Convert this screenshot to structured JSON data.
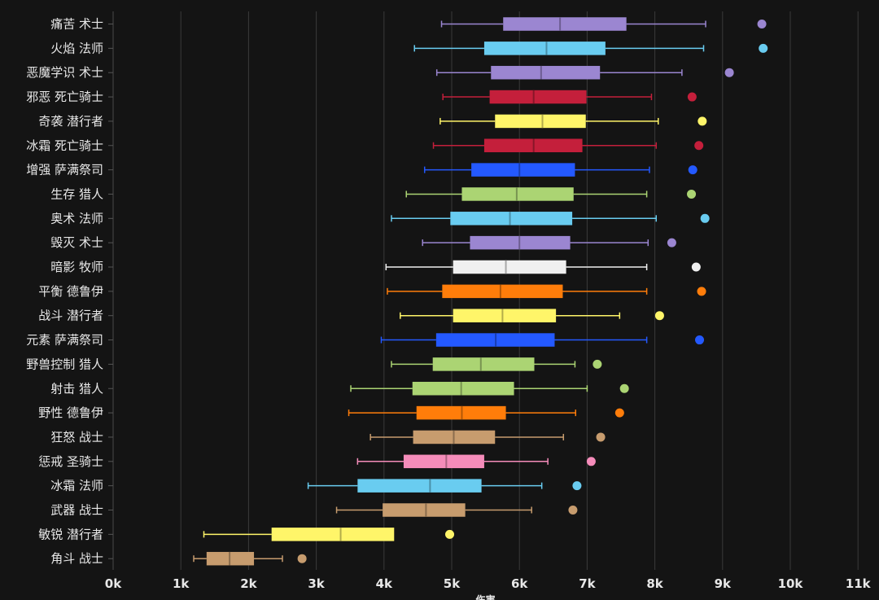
{
  "chart_data": {
    "type": "boxplot",
    "orientation": "horizontal",
    "title": "",
    "xlabel": "伤害",
    "ylabel": "",
    "xlim": [
      0,
      11000
    ],
    "xticks": [
      0,
      1000,
      2000,
      3000,
      4000,
      5000,
      6000,
      7000,
      8000,
      9000,
      10000,
      11000
    ],
    "xtick_labels": [
      "0k",
      "1k",
      "2k",
      "3k",
      "4k",
      "5k",
      "6k",
      "7k",
      "8k",
      "9k",
      "10k",
      "11k"
    ],
    "grid": "vertical",
    "series": [
      {
        "name": "痛苦 术士",
        "color": "#9b86d1",
        "whisker_low": 4850,
        "q1": 5760,
        "median": 6600,
        "q3": 7580,
        "whisker_high": 8750,
        "outlier": 9580
      },
      {
        "name": "火焰 法师",
        "color": "#69ccf0",
        "whisker_low": 4450,
        "q1": 5480,
        "median": 6400,
        "q3": 7270,
        "whisker_high": 8720,
        "outlier": 9600
      },
      {
        "name": "恶魔学识 术士",
        "color": "#9b86d1",
        "whisker_low": 4780,
        "q1": 5580,
        "median": 6320,
        "q3": 7190,
        "whisker_high": 8400,
        "outlier": 9100
      },
      {
        "name": "邪恶 死亡骑士",
        "color": "#c41f3b",
        "whisker_low": 4870,
        "q1": 5560,
        "median": 6210,
        "q3": 6990,
        "whisker_high": 7950,
        "outlier": 8550
      },
      {
        "name": "奇袭 潜行者",
        "color": "#fff569",
        "whisker_low": 4830,
        "q1": 5640,
        "median": 6340,
        "q3": 6980,
        "whisker_high": 8050,
        "outlier": 8700
      },
      {
        "name": "冰霜 死亡骑士",
        "color": "#c41f3b",
        "whisker_low": 4730,
        "q1": 5480,
        "median": 6210,
        "q3": 6930,
        "whisker_high": 8020,
        "outlier": 8650
      },
      {
        "name": "增强 萨满祭司",
        "color": "#2459ff",
        "whisker_low": 4600,
        "q1": 5290,
        "median": 6000,
        "q3": 6820,
        "whisker_high": 7920,
        "outlier": 8560
      },
      {
        "name": "生存 猎人",
        "color": "#abd473",
        "whisker_low": 4330,
        "q1": 5150,
        "median": 5960,
        "q3": 6800,
        "whisker_high": 7880,
        "outlier": 8540
      },
      {
        "name": "奥术 法师",
        "color": "#69ccf0",
        "whisker_low": 4110,
        "q1": 4980,
        "median": 5860,
        "q3": 6780,
        "whisker_high": 8020,
        "outlier": 8740
      },
      {
        "name": "毁灭 术士",
        "color": "#9b86d1",
        "whisker_low": 4570,
        "q1": 5270,
        "median": 6000,
        "q3": 6750,
        "whisker_high": 7900,
        "outlier": 8250
      },
      {
        "name": "暗影 牧师",
        "color": "#f0f0f0",
        "whisker_low": 4030,
        "q1": 5020,
        "median": 5800,
        "q3": 6690,
        "whisker_high": 7880,
        "outlier": 8610
      },
      {
        "name": "平衡 德鲁伊",
        "color": "#ff7d0a",
        "whisker_low": 4050,
        "q1": 4860,
        "median": 5720,
        "q3": 6640,
        "whisker_high": 7880,
        "outlier": 8690
      },
      {
        "name": "战斗 潜行者",
        "color": "#fff569",
        "whisker_low": 4240,
        "q1": 5020,
        "median": 5750,
        "q3": 6540,
        "whisker_high": 7480,
        "outlier": 8070
      },
      {
        "name": "元素 萨满祭司",
        "color": "#2459ff",
        "whisker_low": 3960,
        "q1": 4770,
        "median": 5650,
        "q3": 6520,
        "whisker_high": 7880,
        "outlier": 8660
      },
      {
        "name": "野兽控制 猎人",
        "color": "#abd473",
        "whisker_low": 4110,
        "q1": 4720,
        "median": 5430,
        "q3": 6220,
        "whisker_high": 6820,
        "outlier": 7150
      },
      {
        "name": "射击 猎人",
        "color": "#abd473",
        "whisker_low": 3510,
        "q1": 4420,
        "median": 5140,
        "q3": 5920,
        "whisker_high": 7000,
        "outlier": 7550
      },
      {
        "name": "野性 德鲁伊",
        "color": "#ff7d0a",
        "whisker_low": 3480,
        "q1": 4480,
        "median": 5150,
        "q3": 5800,
        "whisker_high": 6830,
        "outlier": 7480
      },
      {
        "name": "狂怒 战士",
        "color": "#c79c6e",
        "whisker_low": 3800,
        "q1": 4430,
        "median": 5030,
        "q3": 5640,
        "whisker_high": 6650,
        "outlier": 7200
      },
      {
        "name": "惩戒 圣骑士",
        "color": "#f58cba",
        "whisker_low": 3610,
        "q1": 4290,
        "median": 4920,
        "q3": 5480,
        "whisker_high": 6420,
        "outlier": 7060
      },
      {
        "name": "冰霜 法师",
        "color": "#69ccf0",
        "whisker_low": 2880,
        "q1": 3610,
        "median": 4680,
        "q3": 5440,
        "whisker_high": 6330,
        "outlier": 6850
      },
      {
        "name": "武器 战士",
        "color": "#c79c6e",
        "whisker_low": 3300,
        "q1": 3980,
        "median": 4620,
        "q3": 5200,
        "whisker_high": 6180,
        "outlier": 6790
      },
      {
        "name": "敏锐 潜行者",
        "color": "#fff569",
        "whisker_low": 1340,
        "q1": 2340,
        "median": 3360,
        "q3": 4150,
        "whisker_high": null,
        "outlier": 4970
      },
      {
        "name": "角斗 战士",
        "color": "#c79c6e",
        "whisker_low": 1190,
        "q1": 1380,
        "median": 1720,
        "q3": 2080,
        "whisker_high": 2500,
        "outlier": 2790
      }
    ]
  }
}
